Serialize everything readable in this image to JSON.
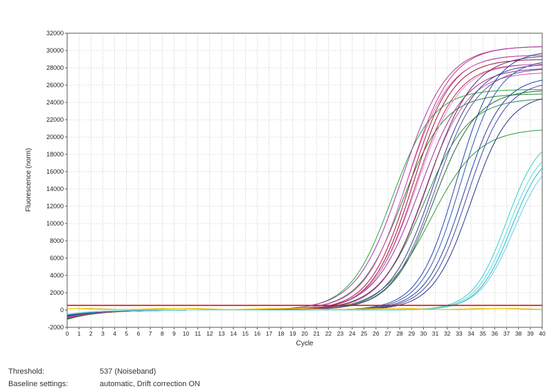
{
  "chart_data": {
    "type": "line",
    "title": "",
    "xlabel": "Cycle",
    "ylabel": "Fluorescence (norm)",
    "xlim": [
      0,
      40
    ],
    "ylim": [
      -2000,
      32000
    ],
    "x_ticks": [
      0,
      1,
      2,
      3,
      4,
      5,
      6,
      7,
      8,
      9,
      10,
      11,
      12,
      13,
      14,
      15,
      16,
      17,
      18,
      19,
      20,
      21,
      22,
      23,
      24,
      25,
      26,
      27,
      28,
      29,
      30,
      31,
      32,
      33,
      34,
      35,
      36,
      37,
      38,
      39,
      40
    ],
    "y_ticks": [
      -2000,
      0,
      2000,
      4000,
      6000,
      8000,
      10000,
      12000,
      14000,
      16000,
      18000,
      20000,
      22000,
      24000,
      26000,
      28000,
      30000,
      32000
    ],
    "grid": true,
    "threshold": 537,
    "series": [
      {
        "color": "#22aa33",
        "plateau": 25500,
        "midpoint": 27.3,
        "slope": 1.75
      },
      {
        "color": "#228833",
        "plateau": 25000,
        "midpoint": 28.2,
        "slope": 1.8
      },
      {
        "color": "#338844",
        "plateau": 24500,
        "midpoint": 30.0,
        "slope": 1.9
      },
      {
        "color": "#2a9a3a",
        "plateau": 21000,
        "midpoint": 30.6,
        "slope": 2.0
      },
      {
        "color": "#226633",
        "plateau": 25500,
        "midpoint": 30.9,
        "slope": 1.8
      },
      {
        "color": "#aa1144",
        "plateau": 29500,
        "midpoint": 28.9,
        "slope": 1.7
      },
      {
        "color": "#991133",
        "plateau": 29000,
        "midpoint": 29.1,
        "slope": 1.7
      },
      {
        "color": "#bb2255",
        "plateau": 28500,
        "midpoint": 29.3,
        "slope": 1.75
      },
      {
        "color": "#cc3366",
        "plateau": 30500,
        "midpoint": 28.7,
        "slope": 1.8
      },
      {
        "color": "#aa33aa",
        "plateau": 30500,
        "midpoint": 28.2,
        "slope": 1.9
      },
      {
        "color": "#cc66cc",
        "plateau": 29500,
        "midpoint": 28.6,
        "slope": 1.8
      },
      {
        "color": "#dd88dd",
        "plateau": 28500,
        "midpoint": 29.4,
        "slope": 1.8
      },
      {
        "color": "#993399",
        "plateau": 28000,
        "midpoint": 29.7,
        "slope": 1.9
      },
      {
        "color": "#cc55aa",
        "plateau": 27500,
        "midpoint": 30.1,
        "slope": 1.8
      },
      {
        "color": "#6a2a5a",
        "plateau": 29500,
        "midpoint": 30.4,
        "slope": 1.9
      },
      {
        "color": "#3a3a8a",
        "plateau": 28500,
        "midpoint": 30.8,
        "slope": 1.8
      },
      {
        "color": "#555599",
        "plateau": 28000,
        "midpoint": 31.0,
        "slope": 1.8
      },
      {
        "color": "#2244aa",
        "plateau": 30000,
        "midpoint": 32.8,
        "slope": 1.6
      },
      {
        "color": "#3355bb",
        "plateau": 29000,
        "midpoint": 33.1,
        "slope": 1.6
      },
      {
        "color": "#1f3f99",
        "plateau": 27000,
        "midpoint": 33.4,
        "slope": 1.6
      },
      {
        "color": "#4444aa",
        "plateau": 26500,
        "midpoint": 33.7,
        "slope": 1.6
      },
      {
        "color": "#223388",
        "plateau": 25000,
        "midpoint": 34.0,
        "slope": 1.6
      },
      {
        "color": "#33cccc",
        "plateau": 20500,
        "midpoint": 37.0,
        "slope": 1.4
      },
      {
        "color": "#55dddd",
        "plateau": 19500,
        "midpoint": 37.2,
        "slope": 1.4
      },
      {
        "color": "#22bbcc",
        "plateau": 19000,
        "midpoint": 37.4,
        "slope": 1.4
      },
      {
        "color": "#66ccdd",
        "plateau": 18500,
        "midpoint": 37.6,
        "slope": 1.45
      },
      {
        "color": "#ccaa00",
        "plateau": 0,
        "midpoint": 30,
        "slope": 2
      },
      {
        "color": "#eecc00",
        "plateau": 0,
        "midpoint": 30,
        "slope": 2
      }
    ]
  },
  "footer": {
    "threshold_label": "Threshold:",
    "threshold_value": "537 (Noiseband)",
    "baseline_label": "Baseline settings:",
    "baseline_value": "automatic, Drift correction ON"
  }
}
